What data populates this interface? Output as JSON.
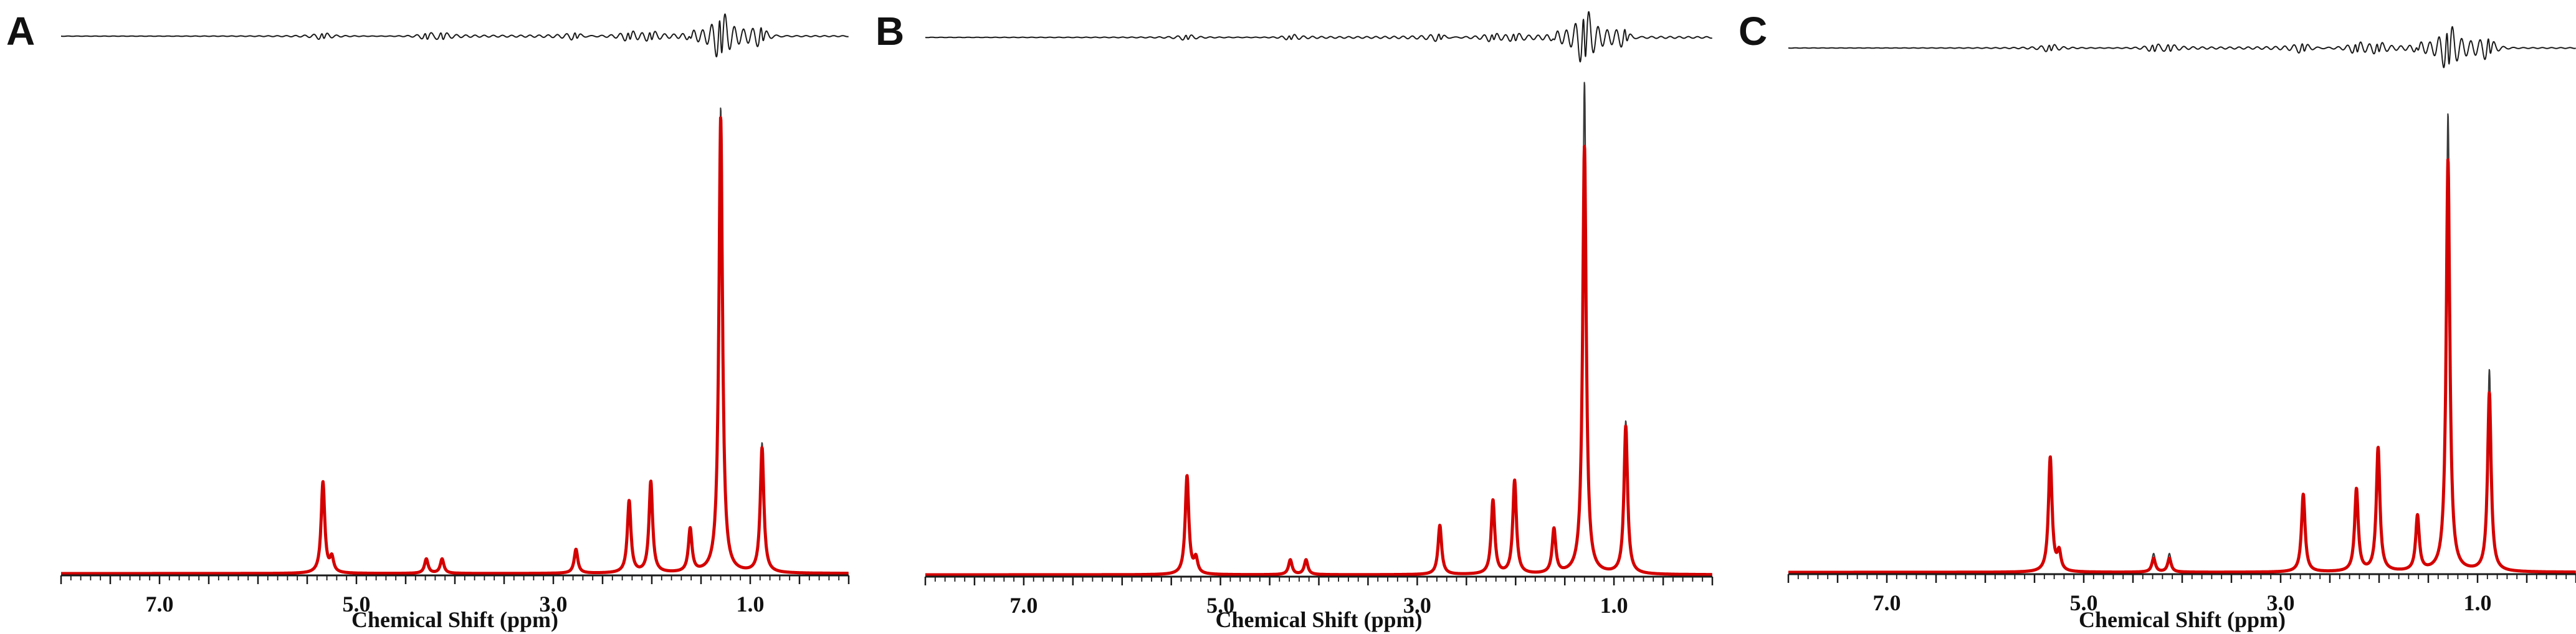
{
  "figure": {
    "background": "#ffffff",
    "colors": {
      "fitted": "#d40000",
      "measured": "#3a3a3a",
      "residual": "#1a1a1a",
      "axis": "#1a1a1a"
    }
  },
  "chart_data": [
    {
      "type": "line",
      "panel_label": "A",
      "xlabel": "Chemical Shift (ppm)",
      "ylabel": "",
      "xlim": [
        8.0,
        0.0
      ],
      "x_reversed": true,
      "xticks": [
        7.0,
        5.0,
        3.0,
        1.0
      ],
      "xtick_labels": [
        "7.0",
        "5.0",
        "3.0",
        "1.0"
      ],
      "grid": false,
      "series": [
        {
          "name": "",
          "role": "measured",
          "peaks": [
            {
              "ppm": 5.34,
              "height": 0.19
            },
            {
              "ppm": 5.25,
              "height": 0.03
            },
            {
              "ppm": 4.29,
              "height": 0.03
            },
            {
              "ppm": 4.13,
              "height": 0.03
            },
            {
              "ppm": 2.77,
              "height": 0.05
            },
            {
              "ppm": 2.23,
              "height": 0.15
            },
            {
              "ppm": 2.01,
              "height": 0.19
            },
            {
              "ppm": 1.61,
              "height": 0.09
            },
            {
              "ppm": 1.3,
              "height": 0.97
            },
            {
              "ppm": 0.88,
              "height": 0.27
            }
          ]
        },
        {
          "name": "",
          "role": "fitted",
          "peaks": [
            {
              "ppm": 5.34,
              "height": 0.19
            },
            {
              "ppm": 5.25,
              "height": 0.03
            },
            {
              "ppm": 4.29,
              "height": 0.03
            },
            {
              "ppm": 4.13,
              "height": 0.03
            },
            {
              "ppm": 2.77,
              "height": 0.05
            },
            {
              "ppm": 2.23,
              "height": 0.15
            },
            {
              "ppm": 2.01,
              "height": 0.19
            },
            {
              "ppm": 1.61,
              "height": 0.09
            },
            {
              "ppm": 1.3,
              "height": 0.95
            },
            {
              "ppm": 0.88,
              "height": 0.26
            }
          ]
        },
        {
          "name": "",
          "role": "residual",
          "wiggles": [
            {
              "ppm": 5.34,
              "amp": 0.01
            },
            {
              "ppm": 4.29,
              "amp": 0.01
            },
            {
              "ppm": 4.13,
              "amp": 0.01
            },
            {
              "ppm": 2.77,
              "amp": 0.01
            },
            {
              "ppm": 2.23,
              "amp": 0.015
            },
            {
              "ppm": 2.01,
              "amp": 0.015
            },
            {
              "ppm": 1.61,
              "amp": 0.01
            },
            {
              "ppm": 1.3,
              "amp": 0.07
            },
            {
              "ppm": 0.88,
              "amp": 0.025
            }
          ]
        }
      ]
    },
    {
      "type": "line",
      "panel_label": "B",
      "xlabel": "Chemical Shift (ppm)",
      "ylabel": "",
      "xlim": [
        8.0,
        0.0
      ],
      "x_reversed": true,
      "xticks": [
        7.0,
        5.0,
        3.0,
        1.0
      ],
      "xtick_labels": [
        "7.0",
        "5.0",
        "3.0",
        "1.0"
      ],
      "grid": false,
      "series": [
        {
          "name": "",
          "role": "measured",
          "peaks": [
            {
              "ppm": 5.34,
              "height": 0.2
            },
            {
              "ppm": 5.25,
              "height": 0.03
            },
            {
              "ppm": 4.29,
              "height": 0.03
            },
            {
              "ppm": 4.13,
              "height": 0.03
            },
            {
              "ppm": 2.77,
              "height": 0.1
            },
            {
              "ppm": 2.23,
              "height": 0.15
            },
            {
              "ppm": 2.01,
              "height": 0.19
            },
            {
              "ppm": 1.61,
              "height": 0.09
            },
            {
              "ppm": 1.3,
              "height": 1.0
            },
            {
              "ppm": 0.88,
              "height": 0.31
            }
          ]
        },
        {
          "name": "",
          "role": "fitted",
          "peaks": [
            {
              "ppm": 5.34,
              "height": 0.2
            },
            {
              "ppm": 5.25,
              "height": 0.03
            },
            {
              "ppm": 4.29,
              "height": 0.03
            },
            {
              "ppm": 4.13,
              "height": 0.03
            },
            {
              "ppm": 2.77,
              "height": 0.1
            },
            {
              "ppm": 2.23,
              "height": 0.15
            },
            {
              "ppm": 2.01,
              "height": 0.19
            },
            {
              "ppm": 1.61,
              "height": 0.09
            },
            {
              "ppm": 1.3,
              "height": 0.87
            },
            {
              "ppm": 0.88,
              "height": 0.3
            }
          ]
        },
        {
          "name": "",
          "role": "residual",
          "wiggles": [
            {
              "ppm": 5.34,
              "amp": 0.008
            },
            {
              "ppm": 4.29,
              "amp": 0.008
            },
            {
              "ppm": 2.77,
              "amp": 0.01
            },
            {
              "ppm": 2.23,
              "amp": 0.012
            },
            {
              "ppm": 2.01,
              "amp": 0.012
            },
            {
              "ppm": 1.61,
              "amp": 0.008
            },
            {
              "ppm": 1.3,
              "amp": 0.08
            },
            {
              "ppm": 0.88,
              "amp": 0.02
            }
          ]
        }
      ]
    },
    {
      "type": "line",
      "panel_label": "C",
      "xlabel": "Chemical Shift (ppm)",
      "ylabel": "",
      "xlim": [
        8.0,
        0.0
      ],
      "x_reversed": true,
      "xticks": [
        7.0,
        5.0,
        3.0,
        1.0
      ],
      "xtick_labels": [
        "7.0",
        "5.0",
        "3.0",
        "1.0"
      ],
      "grid": false,
      "series": [
        {
          "name": "",
          "role": "measured",
          "peaks": [
            {
              "ppm": 5.34,
              "height": 0.25
            },
            {
              "ppm": 5.25,
              "height": 0.04
            },
            {
              "ppm": 4.29,
              "height": 0.04
            },
            {
              "ppm": 4.13,
              "height": 0.04
            },
            {
              "ppm": 2.77,
              "height": 0.17
            },
            {
              "ppm": 2.23,
              "height": 0.18
            },
            {
              "ppm": 2.01,
              "height": 0.27
            },
            {
              "ppm": 1.61,
              "height": 0.12
            },
            {
              "ppm": 1.3,
              "height": 1.0
            },
            {
              "ppm": 0.88,
              "height": 0.44
            }
          ]
        },
        {
          "name": "",
          "role": "fitted",
          "peaks": [
            {
              "ppm": 5.34,
              "height": 0.25
            },
            {
              "ppm": 5.25,
              "height": 0.04
            },
            {
              "ppm": 4.29,
              "height": 0.03
            },
            {
              "ppm": 4.13,
              "height": 0.03
            },
            {
              "ppm": 2.77,
              "height": 0.17
            },
            {
              "ppm": 2.23,
              "height": 0.18
            },
            {
              "ppm": 2.01,
              "height": 0.27
            },
            {
              "ppm": 1.61,
              "height": 0.12
            },
            {
              "ppm": 1.3,
              "height": 0.9
            },
            {
              "ppm": 0.88,
              "height": 0.39
            }
          ]
        },
        {
          "name": "",
          "role": "residual",
          "wiggles": [
            {
              "ppm": 5.34,
              "amp": 0.012
            },
            {
              "ppm": 4.29,
              "amp": 0.012
            },
            {
              "ppm": 4.13,
              "amp": 0.01
            },
            {
              "ppm": 2.77,
              "amp": 0.015
            },
            {
              "ppm": 2.23,
              "amp": 0.018
            },
            {
              "ppm": 2.01,
              "amp": 0.018
            },
            {
              "ppm": 1.61,
              "amp": 0.012
            },
            {
              "ppm": 1.3,
              "amp": 0.07
            },
            {
              "ppm": 0.88,
              "amp": 0.03
            }
          ]
        }
      ]
    }
  ]
}
